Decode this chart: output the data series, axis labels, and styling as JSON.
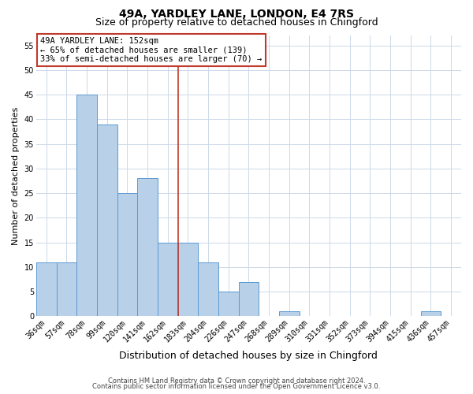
{
  "title": "49A, YARDLEY LANE, LONDON, E4 7RS",
  "subtitle": "Size of property relative to detached houses in Chingford",
  "xlabel": "Distribution of detached houses by size in Chingford",
  "ylabel": "Number of detached properties",
  "bar_labels": [
    "36sqm",
    "57sqm",
    "78sqm",
    "99sqm",
    "120sqm",
    "141sqm",
    "162sqm",
    "183sqm",
    "204sqm",
    "226sqm",
    "247sqm",
    "268sqm",
    "289sqm",
    "310sqm",
    "331sqm",
    "352sqm",
    "373sqm",
    "394sqm",
    "415sqm",
    "436sqm",
    "457sqm"
  ],
  "bar_values": [
    11,
    11,
    45,
    39,
    25,
    28,
    15,
    15,
    11,
    5,
    7,
    0,
    1,
    0,
    0,
    0,
    0,
    0,
    0,
    1,
    0
  ],
  "bar_color": "#b8d0e8",
  "bar_edge_color": "#5b9bd5",
  "ylim": [
    0,
    57
  ],
  "yticks": [
    0,
    5,
    10,
    15,
    20,
    25,
    30,
    35,
    40,
    45,
    50,
    55
  ],
  "property_line_x": 6.5,
  "property_line_color": "#c0392b",
  "annotation_text": "49A YARDLEY LANE: 152sqm\n← 65% of detached houses are smaller (139)\n33% of semi-detached houses are larger (70) →",
  "annotation_box_color": "#c0392b",
  "footer_line1": "Contains HM Land Registry data © Crown copyright and database right 2024.",
  "footer_line2": "Contains public sector information licensed under the Open Government Licence v3.0.",
  "bg_color": "#ffffff",
  "grid_color": "#ccd9e8",
  "title_fontsize": 10,
  "subtitle_fontsize": 9,
  "ylabel_fontsize": 8,
  "xlabel_fontsize": 9,
  "tick_fontsize": 7,
  "annot_fontsize": 7.5,
  "footer_fontsize": 6
}
